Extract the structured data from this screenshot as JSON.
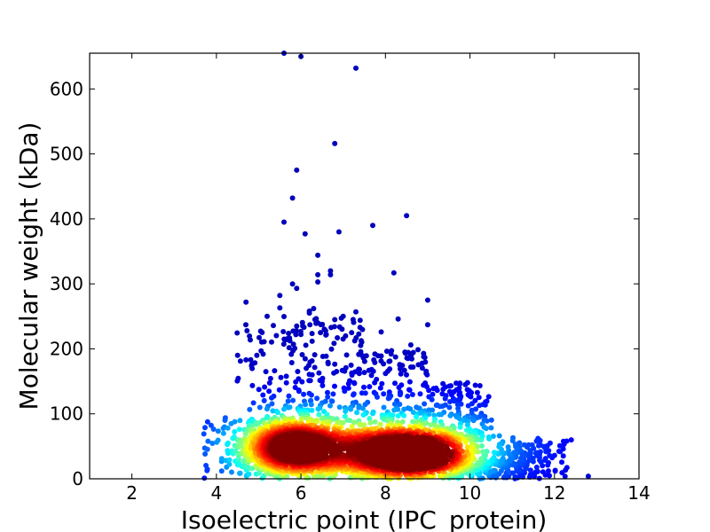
{
  "chart_data": {
    "type": "scatter",
    "title": "",
    "xlabel": "Isoelectric point (IPC_protein)",
    "ylabel": "Molecular weight (kDa)",
    "xlim": [
      1,
      14
    ],
    "ylim": [
      0,
      655
    ],
    "xticks": [
      2,
      4,
      6,
      8,
      10,
      12,
      14
    ],
    "yticks": [
      0,
      100,
      200,
      300,
      400,
      500,
      600
    ],
    "grid": false,
    "legend": "none",
    "color_scale": "density (blue = sparse, red = dense)",
    "colors": {
      "sparse": "#00008b",
      "medium": "#00bfff",
      "mid_high": "#ffff00",
      "dense": "#8b0000"
    },
    "density_clusters": [
      {
        "x": 5.8,
        "y": 48,
        "density": "highest"
      },
      {
        "x": 8.2,
        "y": 42,
        "density": "high"
      },
      {
        "x": 9.0,
        "y": 36,
        "density": "high"
      }
    ],
    "outliers": [
      {
        "x": 5.6,
        "y": 655
      },
      {
        "x": 6.0,
        "y": 650
      },
      {
        "x": 7.3,
        "y": 632
      },
      {
        "x": 6.8,
        "y": 516
      },
      {
        "x": 5.9,
        "y": 475
      },
      {
        "x": 5.8,
        "y": 432
      },
      {
        "x": 8.5,
        "y": 405
      },
      {
        "x": 5.6,
        "y": 395
      },
      {
        "x": 7.7,
        "y": 390
      },
      {
        "x": 6.9,
        "y": 380
      },
      {
        "x": 6.1,
        "y": 377
      },
      {
        "x": 6.4,
        "y": 344
      },
      {
        "x": 6.7,
        "y": 320
      },
      {
        "x": 6.7,
        "y": 314
      },
      {
        "x": 6.4,
        "y": 314
      },
      {
        "x": 8.2,
        "y": 317
      },
      {
        "x": 6.4,
        "y": 303
      },
      {
        "x": 5.8,
        "y": 300
      },
      {
        "x": 5.9,
        "y": 293
      },
      {
        "x": 5.5,
        "y": 282
      },
      {
        "x": 4.7,
        "y": 272
      },
      {
        "x": 9.0,
        "y": 275
      },
      {
        "x": 5.5,
        "y": 263
      },
      {
        "x": 6.3,
        "y": 262
      },
      {
        "x": 6.2,
        "y": 258
      },
      {
        "x": 7.3,
        "y": 257
      },
      {
        "x": 6.2,
        "y": 255
      },
      {
        "x": 5.2,
        "y": 250
      },
      {
        "x": 7.0,
        "y": 250
      },
      {
        "x": 6.8,
        "y": 245
      },
      {
        "x": 8.3,
        "y": 246
      },
      {
        "x": 6.4,
        "y": 240
      },
      {
        "x": 9.0,
        "y": 237
      },
      {
        "x": 5.9,
        "y": 235
      },
      {
        "x": 7.4,
        "y": 233
      },
      {
        "x": 7.2,
        "y": 225
      },
      {
        "x": 7.9,
        "y": 226
      },
      {
        "x": 6.0,
        "y": 222
      },
      {
        "x": 6.6,
        "y": 222
      },
      {
        "x": 8.6,
        "y": 206
      },
      {
        "x": 4.5,
        "y": 190
      },
      {
        "x": 7.9,
        "y": 189
      },
      {
        "x": 4.7,
        "y": 183
      },
      {
        "x": 8.6,
        "y": 172
      },
      {
        "x": 12.8,
        "y": 4
      }
    ]
  }
}
